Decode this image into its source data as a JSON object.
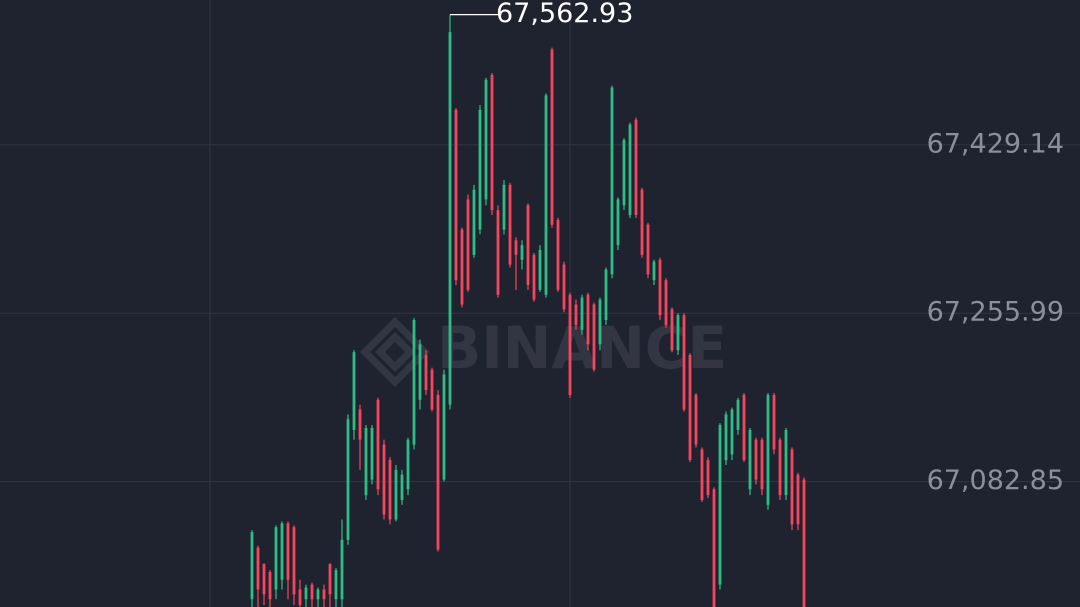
{
  "chart_data": {
    "type": "candlestick",
    "watermark": "BINANCE",
    "up_color": "#2ebd85",
    "down_color": "#f6465d",
    "open": [
      66962,
      67015,
      66998,
      66990,
      66972,
      66982,
      67040,
      67036,
      66972,
      66962,
      66977,
      66962,
      66972,
      66998,
      66962,
      66962,
      67023,
      67136,
      67157,
      67069,
      67085,
      67167,
      67121,
      67105,
      67044,
      67064,
      67075,
      67121,
      67167,
      67213,
      67198,
      67172,
      67085,
      67162,
      67465,
      67342,
      67373,
      67316,
      67342,
      67373,
      67501,
      67362,
      67342,
      67388,
      67331,
      67311,
      67367,
      67316,
      67280,
      67275,
      67527,
      67352,
      67306,
      67275,
      67265,
      67239,
      67275,
      67265,
      67224,
      67249,
      67296,
      67326,
      67367,
      67357,
      67455,
      67383,
      67347,
      67290,
      67311,
      67290,
      67260,
      67218,
      67254,
      67213,
      67172,
      67116,
      67105,
      67075,
      66977,
      67105,
      67111,
      67136,
      67172,
      67075,
      67126,
      67126,
      67059,
      67172,
      67126,
      67069,
      67116,
      67090,
      67085
    ],
    "high": [
      67033,
      67017,
      66999,
      66992,
      67038,
      67042,
      67042,
      67038,
      66982,
      66977,
      66979,
      66974,
      66977,
      66999,
      66994,
      67044,
      67152,
      67218,
      67162,
      67141,
      67141,
      67169,
      67126,
      67108,
      67100,
      67095,
      67128,
      67251,
      67229,
      67218,
      67200,
      67177,
      67198,
      67562.93,
      67467,
      67344,
      67378,
      67388,
      67470,
      67498,
      67503,
      67367,
      67393,
      67390,
      67334,
      67331,
      67369,
      67318,
      67326,
      67482,
      67529,
      67354,
      67309,
      67277,
      67270,
      67275,
      67277,
      67267,
      67272,
      67303,
      67490,
      67375,
      67436,
      67452,
      67457,
      67385,
      67349,
      67311,
      67313,
      67292,
      67262,
      67256,
      67256,
      67215,
      67174,
      67118,
      67108,
      67077,
      67143,
      67155,
      67159,
      67169,
      67174,
      67138,
      67128,
      67128,
      67174,
      67174,
      67128,
      67138,
      67118,
      67092,
      67087
    ],
    "low": [
      66941,
      66954,
      66956,
      66951,
      66962,
      66972,
      66962,
      66956,
      66946,
      66951,
      66954,
      66954,
      66951,
      66954,
      66951,
      66951,
      67018,
      67126,
      67095,
      67064,
      67080,
      67069,
      67044,
      67039,
      67042,
      67059,
      67069,
      67116,
      67157,
      67172,
      67155,
      67011,
      67083,
      67157,
      67285,
      67262,
      67278,
      67313,
      67337,
      67367,
      67357,
      67272,
      67337,
      67303,
      67280,
      67301,
      67280,
      67268,
      67278,
      67272,
      67344,
      67278,
      67257,
      67169,
      67239,
      67234,
      67218,
      67196,
      67218,
      67244,
      67292,
      67321,
      67362,
      67354,
      67354,
      67313,
      67292,
      67285,
      67249,
      67241,
      67216,
      67213,
      67155,
      67103,
      67118,
      67062,
      67066,
      66941,
      66972,
      67100,
      67105,
      67131,
      67103,
      67069,
      67080,
      67069,
      67054,
      67111,
      67064,
      67064,
      67033,
      67033,
      66941
    ],
    "close": [
      67031,
      66972,
      66967,
      66962,
      67036,
      67040,
      66982,
      66967,
      66956,
      66974,
      66962,
      66972,
      66962,
      66967,
      66992,
      67023,
      67147,
      67216,
      67126,
      67138,
      67138,
      67075,
      67049,
      67044,
      67095,
      67090,
      67126,
      67249,
      67224,
      67177,
      67157,
      67013,
      67193,
      67545,
      67290,
      67265,
      67280,
      67383,
      67465,
      67496,
      67362,
      67275,
      67388,
      67306,
      67316,
      67326,
      67285,
      67270,
      67321,
      67480,
      67347,
      67280,
      67260,
      67172,
      67244,
      67272,
      67224,
      67198,
      67270,
      67301,
      67488,
      67373,
      67434,
      67450,
      67357,
      67316,
      67296,
      67309,
      67254,
      67244,
      67218,
      67254,
      67157,
      67105,
      67121,
      67064,
      67069,
      66951,
      67141,
      67152,
      67157,
      67167,
      67105,
      67136,
      67085,
      67075,
      67172,
      67116,
      67069,
      67136,
      67039,
      67039,
      66951
    ],
    "ylim": [
      66954,
      67578
    ],
    "yticks": [
      {
        "value": 67429.14,
        "label": "67,429.14"
      },
      {
        "value": 67255.99,
        "label": "67,255.99"
      },
      {
        "value": 67082.85,
        "label": "67,082.85"
      }
    ],
    "grid": true,
    "max_label": {
      "value": 67562.93,
      "label": "67,562.93"
    }
  }
}
